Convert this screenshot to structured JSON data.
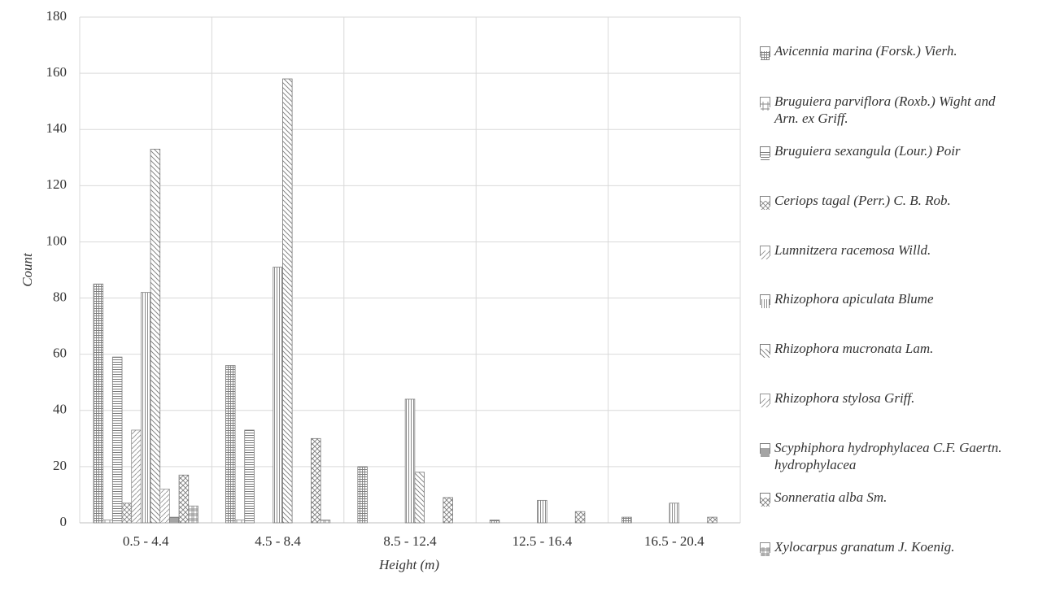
{
  "chart_data": {
    "type": "bar",
    "x_label": "Height (m)",
    "y_label": "Count",
    "categories": [
      "0.5 - 4.4",
      "4.5 - 8.4",
      "8.5 - 12.4",
      "12.5 - 16.4",
      "16.5 - 20.4"
    ],
    "series": [
      {
        "name": "Avicennia marina (Forsk.) Vierh.",
        "color": "#808080",
        "values": [
          85,
          56,
          20,
          1,
          2
        ]
      },
      {
        "name": "Bruguiera parviflora (Roxb.) Wight and Arn. ex Griff.",
        "color": "#8a8a8a",
        "values": [
          1,
          1,
          0,
          0,
          0
        ]
      },
      {
        "name": "Bruguiera sexangula (Lour.) Poir",
        "color": "#7a7a7a",
        "values": [
          59,
          33,
          0,
          0,
          0
        ]
      },
      {
        "name": "Ceriops tagal (Perr.) C. B. Rob.",
        "color": "#858585",
        "values": [
          7,
          0,
          0,
          0,
          0
        ]
      },
      {
        "name": "Lumnitzera racemosa Willd.",
        "color": "#909090",
        "values": [
          33,
          0,
          0,
          0,
          0
        ]
      },
      {
        "name": "Rhizophora apiculata  Blume",
        "color": "#7f7f7f",
        "values": [
          82,
          91,
          44,
          8,
          7
        ]
      },
      {
        "name": "Rhizophora mucronata Lam.",
        "color": "#787878",
        "values": [
          133,
          158,
          18,
          0,
          0
        ]
      },
      {
        "name": "Rhizophora stylosa Griff.",
        "color": "#959595",
        "values": [
          12,
          0,
          0,
          0,
          0
        ]
      },
      {
        "name": "Scyphiphora hydrophylacea C.F. Gaertn. hydrophylacea",
        "color": "#828282",
        "values": [
          2,
          0,
          0,
          0,
          0
        ]
      },
      {
        "name": "Sonneratia alba Sm.",
        "color": "#7c7c7c",
        "values": [
          17,
          30,
          9,
          4,
          2
        ]
      },
      {
        "name": "Xylocarpus granatum J. Koenig.",
        "color": "#8c8c8c",
        "values": [
          6,
          1,
          0,
          0,
          0
        ]
      }
    ],
    "ylim": [
      0,
      180
    ],
    "yticks": [
      0,
      20,
      40,
      60,
      80,
      100,
      120,
      140,
      160,
      180
    ],
    "grid": true
  }
}
